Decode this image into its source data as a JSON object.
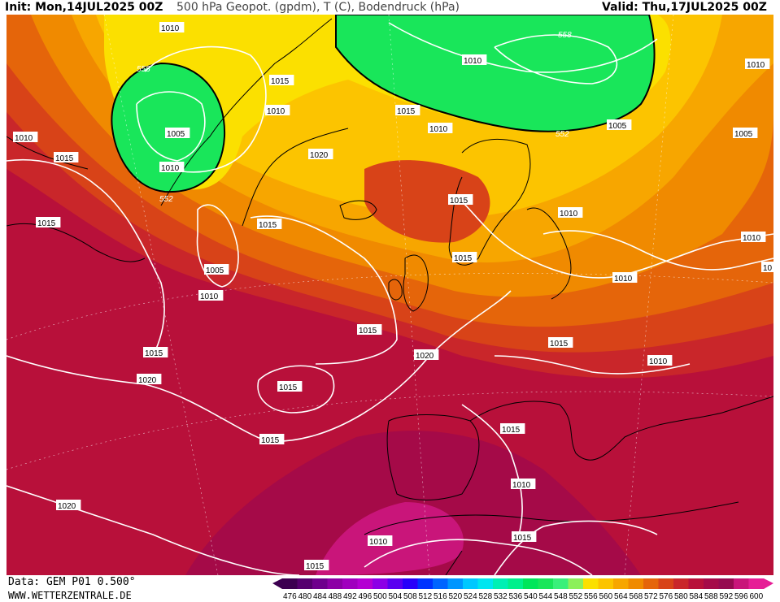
{
  "header": {
    "init": "Init: Mon,14JUL2025 00Z",
    "title": "500 hPa Geopot. (gpdm), T (C), Bodendruck (hPa)",
    "valid": "Valid: Thu,17JUL2025 00Z"
  },
  "footer": {
    "data": "Data: GEM P01 0.500°",
    "site": "WWW.WETTERZENTRALE.DE"
  },
  "colors": {
    "green": "#19e65a",
    "green_light": "#39f07a",
    "yellow": "#fbe000",
    "yellow_orange": "#fcc400",
    "orange_light": "#f7a600",
    "orange": "#f08a00",
    "orange_dark": "#e5650a",
    "red_orange": "#d84318",
    "red": "#c9262a",
    "red_dark": "#b8103a",
    "crimson": "#a50a48",
    "magenta": "#c9157a",
    "isobar": "#ffffff",
    "contour_552": "#000000"
  },
  "scale_labels": [
    "476",
    "480",
    "484",
    "488",
    "492",
    "496",
    "500",
    "504",
    "508",
    "512",
    "516",
    "520",
    "524",
    "528",
    "532",
    "536",
    "540",
    "544",
    "548",
    "552",
    "556",
    "560",
    "564",
    "568",
    "572",
    "576",
    "580",
    "584",
    "588",
    "592",
    "596",
    "600"
  ],
  "scale_colors": [
    "#3c0050",
    "#55006e",
    "#6e008c",
    "#8c00a5",
    "#a000be",
    "#b400d2",
    "#8c00e6",
    "#5a00f0",
    "#2800fa",
    "#0032ff",
    "#0064ff",
    "#0096ff",
    "#00c8ff",
    "#00e6f0",
    "#00f0b4",
    "#00f08c",
    "#00e65a",
    "#19e65a",
    "#39f07a",
    "#8cf05a",
    "#fbe000",
    "#fcc400",
    "#f7a600",
    "#f08a00",
    "#e5650a",
    "#d84318",
    "#c9262a",
    "#b8103a",
    "#a50a48",
    "#960a50",
    "#c9157a",
    "#e61e96"
  ],
  "isobar_labels": [
    {
      "text": "1010",
      "id": "iso-1"
    },
    {
      "text": "558",
      "id": "h-558a"
    },
    {
      "text": "1005",
      "id": "iso-2"
    },
    {
      "text": "1010",
      "id": "iso-3"
    },
    {
      "text": "552",
      "id": "h-552a"
    },
    {
      "text": "1015",
      "id": "iso-4"
    },
    {
      "text": "1010",
      "id": "iso-5"
    },
    {
      "text": "1015",
      "id": "iso-6"
    },
    {
      "text": "1015",
      "id": "iso-7"
    },
    {
      "text": "1010",
      "id": "iso-8"
    },
    {
      "text": "1015",
      "id": "iso-9"
    },
    {
      "text": "1020",
      "id": "iso-10"
    },
    {
      "text": "1015",
      "id": "iso-11"
    },
    {
      "text": "1005",
      "id": "iso-12"
    },
    {
      "text": "1010",
      "id": "iso-13"
    },
    {
      "text": "1015",
      "id": "iso-14"
    },
    {
      "text": "1020",
      "id": "iso-15"
    },
    {
      "text": "1015",
      "id": "iso-16"
    },
    {
      "text": "1020",
      "id": "iso-17"
    },
    {
      "text": "1015",
      "id": "iso-18"
    },
    {
      "text": "1015",
      "id": "iso-19"
    },
    {
      "text": "1020",
      "id": "iso-20"
    },
    {
      "text": "1015",
      "id": "iso-21"
    },
    {
      "text": "1010",
      "id": "iso-22"
    },
    {
      "text": "1015",
      "id": "iso-23"
    },
    {
      "text": "1010",
      "id": "iso-24"
    },
    {
      "text": "1015",
      "id": "iso-25"
    },
    {
      "text": "1015",
      "id": "iso-26"
    },
    {
      "text": "1010",
      "id": "iso-27"
    },
    {
      "text": "1015",
      "id": "iso-28"
    },
    {
      "text": "1010",
      "id": "iso-29"
    },
    {
      "text": "1020",
      "id": "iso-30"
    },
    {
      "text": "558",
      "id": "h-558b"
    },
    {
      "text": "1010",
      "id": "iso-31"
    },
    {
      "text": "552",
      "id": "h-552b"
    },
    {
      "text": "1005",
      "id": "iso-32"
    },
    {
      "text": "1005",
      "id": "iso-33"
    },
    {
      "text": "1010",
      "id": "iso-34"
    },
    {
      "text": "1010",
      "id": "iso-35"
    },
    {
      "text": "10",
      "id": "iso-36"
    },
    {
      "text": "1010",
      "id": "iso-37"
    },
    {
      "text": "1010",
      "id": "iso-38"
    },
    {
      "text": "1015",
      "id": "iso-39"
    }
  ]
}
